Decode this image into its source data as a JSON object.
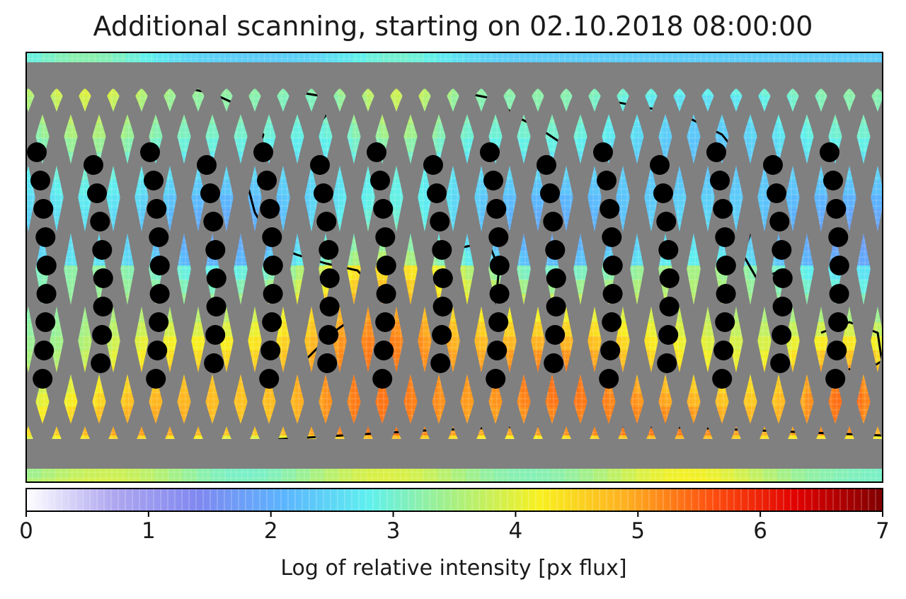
{
  "title": "Additional scanning, starting on 02.10.2018 08:00:00",
  "colorbar": {
    "label": "Log of relative intensity [px flux]",
    "range": [
      0,
      7
    ],
    "ticks": [
      "0",
      "1",
      "2",
      "3",
      "4",
      "5",
      "6",
      "7"
    ],
    "colormap": [
      "#ffffff",
      "#b0a8f0",
      "#8088f0",
      "#5bb4ff",
      "#5ff0ee",
      "#a8f080",
      "#f8f020",
      "#ffb020",
      "#ff5010",
      "#e00000",
      "#800000"
    ]
  },
  "map": {
    "scan_path_color": "#808080",
    "marker_color": "#000000",
    "coastline_color": "#000000"
  }
}
